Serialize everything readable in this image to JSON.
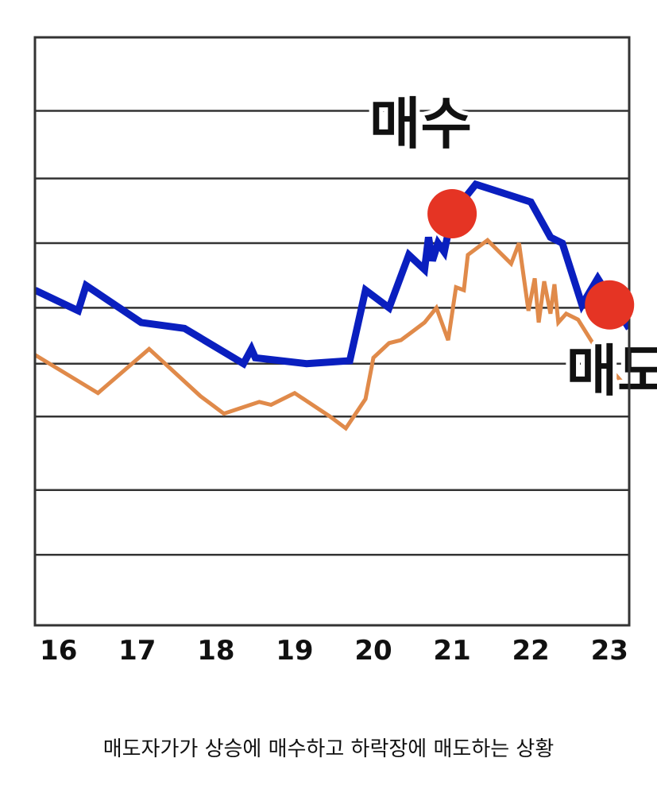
{
  "caption": "매도자가가 상승에 매수하고 하락장에 매도하는 상황",
  "colors": {
    "buy_line": "#0a1fbf",
    "sell_line": "#e08a4a",
    "marker": "#e53424",
    "grid": "#333333",
    "frame": "#333333"
  },
  "chart_data": {
    "type": "line",
    "title": "",
    "xlabel": "",
    "ylabel": "",
    "categories": [
      "16",
      "17",
      "18",
      "19",
      "20",
      "21",
      "22",
      "23"
    ],
    "xlim": [
      15.7,
      23.25
    ],
    "ylim": [
      0,
      10
    ],
    "grid": true,
    "grid_y": [
      1.2,
      2.3,
      3.55,
      4.45,
      5.4,
      6.5,
      7.6,
      8.75
    ],
    "series": [
      {
        "name": "",
        "color": "#0a1fbf",
        "x": [
          15.7,
          16.25,
          16.35,
          17.05,
          17.6,
          18.35,
          18.45,
          18.5,
          19.15,
          19.7,
          19.9,
          20.2,
          20.45,
          20.65,
          20.7,
          20.75,
          20.82,
          20.9,
          21.0,
          21.3,
          22.0,
          22.25,
          22.4,
          22.65,
          22.85,
          23.25
        ],
        "y": [
          5.7,
          5.35,
          5.78,
          5.15,
          5.05,
          4.45,
          4.7,
          4.55,
          4.45,
          4.5,
          5.7,
          5.4,
          6.3,
          6.05,
          6.6,
          6.2,
          6.5,
          6.35,
          7.0,
          7.5,
          7.2,
          6.6,
          6.5,
          5.45,
          5.9,
          5.05
        ]
      },
      {
        "name": "",
        "color": "#e08a4a",
        "x": [
          15.7,
          16.5,
          17.15,
          17.8,
          18.1,
          18.55,
          18.7,
          19.0,
          19.45,
          19.65,
          19.9,
          20.0,
          20.2,
          20.35,
          20.45,
          20.65,
          20.8,
          20.95,
          21.05,
          21.15,
          21.2,
          21.45,
          21.6,
          21.75,
          21.85,
          21.97,
          22.05,
          22.1,
          22.17,
          22.25,
          22.3,
          22.35,
          22.45,
          22.6,
          22.95,
          23.25
        ],
        "y": [
          4.6,
          3.95,
          4.7,
          3.9,
          3.6,
          3.8,
          3.75,
          3.95,
          3.55,
          3.35,
          3.85,
          4.55,
          4.8,
          4.85,
          4.95,
          5.15,
          5.4,
          4.85,
          5.75,
          5.7,
          6.3,
          6.55,
          6.35,
          6.15,
          6.5,
          5.35,
          5.9,
          5.15,
          5.85,
          5.3,
          5.8,
          5.15,
          5.3,
          5.2,
          4.45,
          4.0
        ]
      }
    ],
    "markers": [
      {
        "x": 21.0,
        "y": 7.0
      },
      {
        "x": 23.0,
        "y": 5.45
      }
    ],
    "annotations": [
      {
        "text": "매수",
        "x": 19.95,
        "y": 8.2
      },
      {
        "text": "매도",
        "x": 22.45,
        "y": 4.0
      }
    ]
  }
}
